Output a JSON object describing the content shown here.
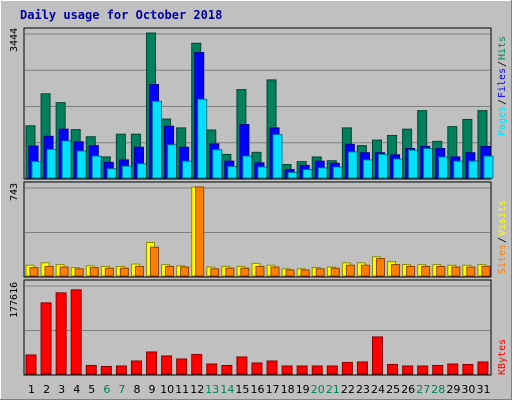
{
  "chart_data": {
    "type": "bar",
    "title": "Daily usage for October 2018",
    "categories": [
      "1",
      "2",
      "3",
      "4",
      "5",
      "6",
      "7",
      "8",
      "9",
      "10",
      "11",
      "12",
      "13",
      "14",
      "15",
      "16",
      "17",
      "18",
      "19",
      "20",
      "21",
      "22",
      "23",
      "24",
      "25",
      "26",
      "27",
      "28",
      "29",
      "30",
      "31"
    ],
    "weekend_days": [
      "6",
      "7",
      "13",
      "14",
      "20",
      "21",
      "27",
      "28"
    ],
    "colors": {
      "hits": "#00805c",
      "files": "#0000ff",
      "pages": "#00e0ff",
      "visits": "#ffff00",
      "sites": "#ff8000",
      "kbytes": "#ff0000",
      "weekday_label": "#000000",
      "weekend_label": "#00805c",
      "title": "#0000a0",
      "background": "#c0c0c0",
      "plot": "#c0c0c0",
      "grid": "#808080"
    },
    "panels": [
      {
        "id": "hits-files-pages",
        "ymax_label": "3444",
        "ymax": 3444,
        "legend": [
          "Pages",
          "Files",
          "Hits"
        ],
        "series": [
          {
            "name": "Hits",
            "values": [
              1240,
              2000,
              1790,
              1150,
              980,
              500,
              1040,
              1040,
              3444,
              1400,
              1190,
              3200,
              1140,
              560,
              2100,
              610,
              2330,
              320,
              390,
              500,
              410,
              1190,
              770,
              900,
              1010,
              1160,
              1600,
              870,
              1220,
              1390,
              1600
            ]
          },
          {
            "name": "Files",
            "values": [
              760,
              990,
              1160,
              860,
              770,
              370,
              430,
              730,
              2220,
              1230,
              730,
              2980,
              810,
              400,
              1270,
              360,
              1190,
              200,
              300,
              400,
              350,
              800,
              600,
              600,
              550,
              700,
              750,
              700,
              500,
              600,
              750
            ]
          },
          {
            "name": "Pages",
            "values": [
              390,
              680,
              880,
              640,
              520,
              220,
              280,
              340,
              1820,
              790,
              400,
              1870,
              670,
              270,
              520,
              260,
              1030,
              130,
              200,
              240,
              260,
              620,
              430,
              560,
              450,
              660,
              700,
              500,
              400,
              400,
              520
            ]
          }
        ]
      },
      {
        "id": "visits-sites",
        "ymax_label": "743",
        "ymax": 743,
        "legend": [
          "Sites",
          "Visits"
        ],
        "series": [
          {
            "name": "Visits",
            "values": [
              90,
              110,
              95,
              70,
              85,
              80,
              80,
              100,
              280,
              95,
              85,
              743,
              75,
              80,
              80,
              105,
              90,
              60,
              60,
              70,
              75,
              110,
              110,
              160,
              120,
              95,
              95,
              95,
              90,
              90,
              95
            ]
          },
          {
            "name": "Sites",
            "values": [
              70,
              80,
              75,
              60,
              70,
              65,
              65,
              80,
              240,
              80,
              75,
              743,
              60,
              65,
              65,
              80,
              75,
              50,
              50,
              60,
              65,
              90,
              90,
              145,
              95,
              80,
              80,
              80,
              75,
              75,
              80
            ]
          }
        ]
      },
      {
        "id": "kbytes",
        "ymax_label": "177616",
        "ymax": 177616,
        "legend": [
          "KBytes"
        ],
        "series": [
          {
            "name": "KBytes",
            "values": [
              38000,
              142000,
              162000,
              168000,
              17000,
              15000,
              16000,
              26000,
              44000,
              36000,
              30000,
              39000,
              20000,
              17000,
              34000,
              22000,
              26000,
              16000,
              16000,
              16000,
              16000,
              23000,
              24000,
              74000,
              19000,
              16000,
              16000,
              17000,
              20000,
              19000,
              24000
            ]
          }
        ]
      }
    ]
  }
}
